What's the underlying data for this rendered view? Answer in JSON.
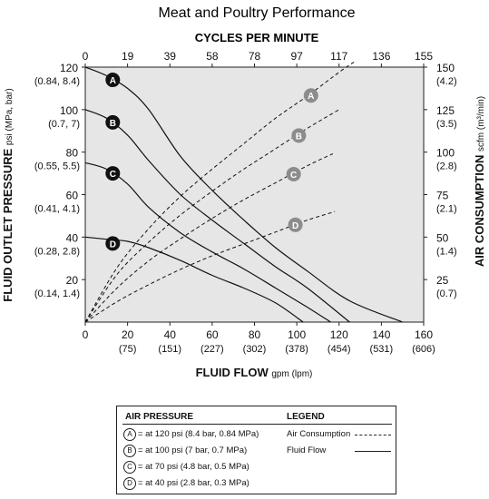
{
  "chart_data": {
    "type": "line",
    "title": "Meat and Poultry Performance",
    "top_axis_label": "CYCLES PER MINUTE",
    "top_ticks": [
      "0",
      "19",
      "39",
      "58",
      "78",
      "97",
      "117",
      "136",
      "155"
    ],
    "xlabel_main": "FLUID FLOW",
    "xlabel_unit": "gpm (lpm)",
    "x_ticks": [
      "0",
      "20",
      "40",
      "60",
      "80",
      "100",
      "120",
      "140",
      "160"
    ],
    "x_ticks_secondary": [
      "",
      "(75)",
      "(151)",
      "(227)",
      "(302)",
      "(378)",
      "(454)",
      "(531)",
      "(606)"
    ],
    "xlim": [
      0,
      160
    ],
    "ylabel_main": "FLUID OUTLET PRESSURE",
    "ylabel_unit": "psi (MPa, bar)",
    "y_ticks": [
      "20",
      "40",
      "60",
      "80",
      "100",
      "120"
    ],
    "y_ticks_secondary": [
      "(0.14, 1.4)",
      "(0.28, 2.8)",
      "(0.41, 4.1)",
      "(0.55, 5.5)",
      "(0.7, 7)",
      "(0.84, 8.4)"
    ],
    "ylim": [
      0,
      120
    ],
    "y2label_main": "AIR CONSUMPTION",
    "y2label_unit": "scfm (m³/min)",
    "y2_ticks": [
      "25",
      "50",
      "75",
      "100",
      "125",
      "150"
    ],
    "y2_ticks_secondary": [
      "(0.7)",
      "(1.4)",
      "(2.1)",
      "(2.8)",
      "(3.5)",
      "(4.2)"
    ],
    "y2lim": [
      0,
      150
    ],
    "fluid_flow_series": [
      {
        "label": "A",
        "points": [
          [
            0,
            120
          ],
          [
            10,
            116
          ],
          [
            20,
            110
          ],
          [
            30,
            100
          ],
          [
            45,
            78
          ],
          [
            60,
            62
          ],
          [
            75,
            48
          ],
          [
            90,
            35
          ],
          [
            105,
            24
          ],
          [
            125,
            10
          ],
          [
            150,
            0
          ]
        ]
      },
      {
        "label": "B",
        "points": [
          [
            0,
            100
          ],
          [
            10,
            96
          ],
          [
            20,
            88
          ],
          [
            30,
            76
          ],
          [
            45,
            60
          ],
          [
            60,
            48
          ],
          [
            75,
            37
          ],
          [
            90,
            26
          ],
          [
            105,
            16
          ],
          [
            125,
            0
          ]
        ]
      },
      {
        "label": "C",
        "points": [
          [
            0,
            75
          ],
          [
            10,
            72
          ],
          [
            20,
            65
          ],
          [
            30,
            54
          ],
          [
            45,
            42
          ],
          [
            60,
            33
          ],
          [
            75,
            25
          ],
          [
            90,
            16
          ],
          [
            105,
            7
          ],
          [
            116,
            0
          ]
        ]
      },
      {
        "label": "D",
        "points": [
          [
            0,
            40
          ],
          [
            10,
            39
          ],
          [
            20,
            38
          ],
          [
            30,
            35
          ],
          [
            45,
            29
          ],
          [
            60,
            22
          ],
          [
            75,
            16
          ],
          [
            90,
            9
          ],
          [
            103,
            0
          ]
        ]
      }
    ],
    "air_consumption_series": [
      {
        "label": "A",
        "points": [
          [
            0,
            0
          ],
          [
            15,
            32
          ],
          [
            30,
            55
          ],
          [
            45,
            74
          ],
          [
            60,
            90
          ],
          [
            75,
            105
          ],
          [
            90,
            120
          ],
          [
            105,
            133
          ],
          [
            120,
            147
          ],
          [
            127,
            153
          ]
        ]
      },
      {
        "label": "B",
        "points": [
          [
            0,
            0
          ],
          [
            15,
            28
          ],
          [
            30,
            47
          ],
          [
            45,
            63
          ],
          [
            60,
            77
          ],
          [
            75,
            90
          ],
          [
            90,
            102
          ],
          [
            105,
            114
          ],
          [
            120,
            125
          ]
        ]
      },
      {
        "label": "C",
        "points": [
          [
            0,
            0
          ],
          [
            15,
            20
          ],
          [
            30,
            36
          ],
          [
            45,
            49
          ],
          [
            60,
            61
          ],
          [
            75,
            72
          ],
          [
            90,
            82
          ],
          [
            105,
            92
          ],
          [
            117,
            99
          ]
        ]
      },
      {
        "label": "D",
        "points": [
          [
            0,
            0
          ],
          [
            15,
            12
          ],
          [
            30,
            22
          ],
          [
            45,
            31
          ],
          [
            60,
            39
          ],
          [
            75,
            46
          ],
          [
            90,
            53
          ],
          [
            105,
            60
          ],
          [
            118,
            65
          ]
        ]
      }
    ],
    "grid": false,
    "legend": "bottom",
    "colors": {
      "plot_bg": "#e6e6e6",
      "line": "#111111",
      "fluid_marker": "#111111",
      "air_marker": "#8c8c8c"
    }
  },
  "legend": {
    "air_pressure_header": "AIR PRESSURE",
    "legend_header": "LEGEND",
    "pressures": [
      {
        "key": "A",
        "text": "= at 120 psi (8.4 bar, 0.84 MPa)"
      },
      {
        "key": "B",
        "text": "= at 100 psi (7 bar, 0.7 MPa)"
      },
      {
        "key": "C",
        "text": "= at 70 psi (4.8 bar, 0.5 MPa)"
      },
      {
        "key": "D",
        "text": "= at 40 psi (2.8 bar, 0.3 MPa)"
      }
    ],
    "air_consumption_label": "Air Consumption",
    "fluid_flow_label": "Fluid Flow"
  }
}
